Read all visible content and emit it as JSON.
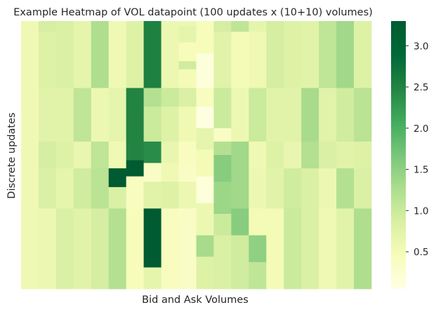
{
  "chart_data": {
    "type": "heatmap",
    "title": "Example Heatmap of VOL datapoint (100 updates x (10+10) volumes)",
    "xlabel": "Bid and Ask Volumes",
    "ylabel": "Discrete updates",
    "colormap": "YlGn",
    "vmin": 0.05,
    "vmax": 3.3,
    "colorbar_ticks": [
      0.5,
      1.0,
      1.5,
      2.0,
      2.5,
      3.0
    ],
    "n_rows": 100,
    "n_cols": 20,
    "segments": [
      [
        {
          "rows": [
            0,
            100
          ],
          "v": 0.55
        }
      ],
      [
        {
          "rows": [
            0,
            4
          ],
          "v": 0.9
        },
        {
          "rows": [
            4,
            25
          ],
          "v": 0.8
        },
        {
          "rows": [
            25,
            45
          ],
          "v": 0.75
        },
        {
          "rows": [
            45,
            55
          ],
          "v": 0.9
        },
        {
          "rows": [
            55,
            70
          ],
          "v": 0.85
        },
        {
          "rows": [
            70,
            100
          ],
          "v": 0.6
        }
      ],
      [
        {
          "rows": [
            0,
            25
          ],
          "v": 0.85
        },
        {
          "rows": [
            25,
            45
          ],
          "v": 0.75
        },
        {
          "rows": [
            45,
            55
          ],
          "v": 0.8
        },
        {
          "rows": [
            55,
            70
          ],
          "v": 0.7
        },
        {
          "rows": [
            70,
            100
          ],
          "v": 0.85
        }
      ],
      [
        {
          "rows": [
            0,
            25
          ],
          "v": 0.7
        },
        {
          "rows": [
            25,
            45
          ],
          "v": 1.1
        },
        {
          "rows": [
            45,
            55
          ],
          "v": 0.65
        },
        {
          "rows": [
            55,
            70
          ],
          "v": 0.95
        },
        {
          "rows": [
            70,
            100
          ],
          "v": 0.75
        }
      ],
      [
        {
          "rows": [
            0,
            25
          ],
          "v": 1.25
        },
        {
          "rows": [
            25,
            45
          ],
          "v": 0.6
        },
        {
          "rows": [
            45,
            55
          ],
          "v": 1.1
        },
        {
          "rows": [
            55,
            70
          ],
          "v": 1.15
        },
        {
          "rows": [
            70,
            100
          ],
          "v": 0.9
        }
      ],
      [
        {
          "rows": [
            0,
            25
          ],
          "v": 0.55
        },
        {
          "rows": [
            25,
            45
          ],
          "v": 0.7
        },
        {
          "rows": [
            45,
            55
          ],
          "v": 0.55
        },
        {
          "rows": [
            55,
            62
          ],
          "v": 3.3
        },
        {
          "rows": [
            62,
            70
          ],
          "v": 0.85
        },
        {
          "rows": [
            70,
            100
          ],
          "v": 1.2
        }
      ],
      [
        {
          "rows": [
            0,
            25
          ],
          "v": 0.8
        },
        {
          "rows": [
            25,
            52
          ],
          "v": 2.5
        },
        {
          "rows": [
            52,
            58
          ],
          "v": 3.3
        },
        {
          "rows": [
            58,
            70
          ],
          "v": 0.4
        },
        {
          "rows": [
            70,
            100
          ],
          "v": 0.45
        }
      ],
      [
        {
          "rows": [
            0,
            25
          ],
          "v": 2.55
        },
        {
          "rows": [
            25,
            32
          ],
          "v": 1.2
        },
        {
          "rows": [
            32,
            45
          ],
          "v": 1.0
        },
        {
          "rows": [
            45,
            53
          ],
          "v": 2.4
        },
        {
          "rows": [
            53,
            60
          ],
          "v": 0.35
        },
        {
          "rows": [
            60,
            70
          ],
          "v": 0.75
        },
        {
          "rows": [
            70,
            92
          ],
          "v": 3.3
        },
        {
          "rows": [
            92,
            100
          ],
          "v": 0.7
        }
      ],
      [
        {
          "rows": [
            0,
            25
          ],
          "v": 0.6
        },
        {
          "rows": [
            25,
            32
          ],
          "v": 1.0
        },
        {
          "rows": [
            32,
            45
          ],
          "v": 0.8
        },
        {
          "rows": [
            45,
            53
          ],
          "v": 0.65
        },
        {
          "rows": [
            53,
            60
          ],
          "v": 0.55
        },
        {
          "rows": [
            60,
            70
          ],
          "v": 0.8
        },
        {
          "rows": [
            70,
            100
          ],
          "v": 0.4
        }
      ],
      [
        {
          "rows": [
            0,
            2
          ],
          "v": 0.6
        },
        {
          "rows": [
            2,
            8
          ],
          "v": 0.7
        },
        {
          "rows": [
            8,
            15
          ],
          "v": 0.45
        },
        {
          "rows": [
            15,
            18
          ],
          "v": 0.95
        },
        {
          "rows": [
            18,
            25
          ],
          "v": 0.5
        },
        {
          "rows": [
            25,
            32
          ],
          "v": 0.85
        },
        {
          "rows": [
            32,
            45
          ],
          "v": 0.55
        },
        {
          "rows": [
            45,
            53
          ],
          "v": 0.4
        },
        {
          "rows": [
            53,
            60
          ],
          "v": 0.35
        },
        {
          "rows": [
            60,
            70
          ],
          "v": 0.6
        },
        {
          "rows": [
            70,
            100
          ],
          "v": 0.35
        }
      ],
      [
        {
          "rows": [
            0,
            12
          ],
          "v": 0.45
        },
        {
          "rows": [
            12,
            25
          ],
          "v": 0.15
        },
        {
          "rows": [
            25,
            32
          ],
          "v": 0.4
        },
        {
          "rows": [
            32,
            40
          ],
          "v": 0.1
        },
        {
          "rows": [
            40,
            48
          ],
          "v": 0.7
        },
        {
          "rows": [
            48,
            58
          ],
          "v": 0.5
        },
        {
          "rows": [
            58,
            68
          ],
          "v": 0.15
        },
        {
          "rows": [
            68,
            80
          ],
          "v": 0.6
        },
        {
          "rows": [
            80,
            88
          ],
          "v": 1.3
        },
        {
          "rows": [
            88,
            100
          ],
          "v": 0.8
        }
      ],
      [
        {
          "rows": [
            0,
            4
          ],
          "v": 0.9
        },
        {
          "rows": [
            4,
            25
          ],
          "v": 0.75
        },
        {
          "rows": [
            25,
            40
          ],
          "v": 1.0
        },
        {
          "rows": [
            40,
            45
          ],
          "v": 0.35
        },
        {
          "rows": [
            45,
            50
          ],
          "v": 1.2
        },
        {
          "rows": [
            50,
            60
          ],
          "v": 1.55
        },
        {
          "rows": [
            60,
            72
          ],
          "v": 1.4
        },
        {
          "rows": [
            72,
            80
          ],
          "v": 1.0
        },
        {
          "rows": [
            80,
            100
          ],
          "v": 0.85
        }
      ],
      [
        {
          "rows": [
            0,
            4
          ],
          "v": 1.1
        },
        {
          "rows": [
            4,
            25
          ],
          "v": 0.5
        },
        {
          "rows": [
            25,
            45
          ],
          "v": 0.6
        },
        {
          "rows": [
            45,
            55
          ],
          "v": 1.35
        },
        {
          "rows": [
            55,
            70
          ],
          "v": 1.35
        },
        {
          "rows": [
            70,
            80
          ],
          "v": 1.55
        },
        {
          "rows": [
            80,
            100
          ],
          "v": 0.95
        }
      ],
      [
        {
          "rows": [
            0,
            4
          ],
          "v": 0.7
        },
        {
          "rows": [
            4,
            25
          ],
          "v": 0.55
        },
        {
          "rows": [
            25,
            45
          ],
          "v": 1.0
        },
        {
          "rows": [
            45,
            55
          ],
          "v": 0.55
        },
        {
          "rows": [
            55,
            70
          ],
          "v": 0.6
        },
        {
          "rows": [
            70,
            80
          ],
          "v": 0.5
        },
        {
          "rows": [
            80,
            90
          ],
          "v": 1.5
        },
        {
          "rows": [
            90,
            100
          ],
          "v": 1.1
        }
      ],
      [
        {
          "rows": [
            0,
            25
          ],
          "v": 0.9
        },
        {
          "rows": [
            25,
            45
          ],
          "v": 0.75
        },
        {
          "rows": [
            45,
            55
          ],
          "v": 0.8
        },
        {
          "rows": [
            55,
            70
          ],
          "v": 0.75
        },
        {
          "rows": [
            70,
            100
          ],
          "v": 0.5
        }
      ],
      [
        {
          "rows": [
            0,
            25
          ],
          "v": 0.8
        },
        {
          "rows": [
            25,
            45
          ],
          "v": 0.75
        },
        {
          "rows": [
            45,
            55
          ],
          "v": 0.65
        },
        {
          "rows": [
            55,
            70
          ],
          "v": 0.95
        },
        {
          "rows": [
            70,
            100
          ],
          "v": 1.0
        }
      ],
      [
        {
          "rows": [
            0,
            25
          ],
          "v": 0.75
        },
        {
          "rows": [
            25,
            45
          ],
          "v": 1.3
        },
        {
          "rows": [
            45,
            55
          ],
          "v": 1.2
        },
        {
          "rows": [
            55,
            70
          ],
          "v": 0.85
        },
        {
          "rows": [
            70,
            100
          ],
          "v": 0.85
        }
      ],
      [
        {
          "rows": [
            0,
            25
          ],
          "v": 1.1
        },
        {
          "rows": [
            25,
            45
          ],
          "v": 0.75
        },
        {
          "rows": [
            45,
            55
          ],
          "v": 0.85
        },
        {
          "rows": [
            55,
            70
          ],
          "v": 0.6
        },
        {
          "rows": [
            70,
            100
          ],
          "v": 0.55
        }
      ],
      [
        {
          "rows": [
            0,
            25
          ],
          "v": 1.35
        },
        {
          "rows": [
            25,
            45
          ],
          "v": 0.95
        },
        {
          "rows": [
            45,
            55
          ],
          "v": 0.75
        },
        {
          "rows": [
            55,
            70
          ],
          "v": 1.2
        },
        {
          "rows": [
            70,
            100
          ],
          "v": 0.75
        }
      ],
      [
        {
          "rows": [
            0,
            25
          ],
          "v": 0.8
        },
        {
          "rows": [
            25,
            45
          ],
          "v": 1.15
        },
        {
          "rows": [
            45,
            55
          ],
          "v": 0.8
        },
        {
          "rows": [
            55,
            70
          ],
          "v": 0.85
        },
        {
          "rows": [
            70,
            100
          ],
          "v": 1.25
        }
      ]
    ]
  }
}
